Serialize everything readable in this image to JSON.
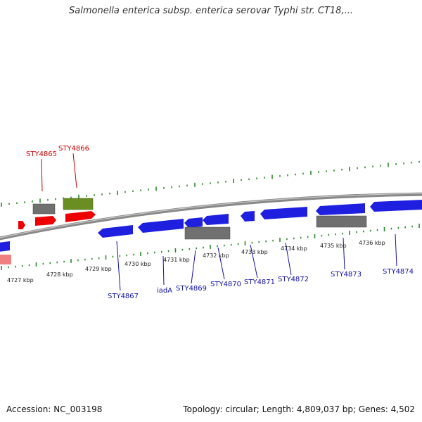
{
  "title": "Salmonella enterica subsp. enterica serovar Typhi str. CT18,...",
  "footer": {
    "accession": "Accession: NC_003198",
    "stats": "Topology: circular; Length: 4,809,037 bp; Genes: 4,502"
  },
  "colors": {
    "forward": "#ee0000",
    "forward_light": "#f08080",
    "forward_other": "#6b8e23",
    "reverse": "#1f1fe0",
    "pseudo": "#707070",
    "backbone": "#888888",
    "tick": "#2a8a2a",
    "label_forward": "#cc0000",
    "label_reverse": "#1010aa"
  },
  "ticks": [
    "4727 kbp",
    "4728 kbp",
    "4729 kbp",
    "4730 kbp",
    "4731 kbp",
    "4732 kbp",
    "4733 kbp",
    "4734 kbp",
    "4735 kbp",
    "4736 kbp"
  ],
  "gene_labels": {
    "forward": [
      "STY4865",
      "STY4866"
    ],
    "reverse": [
      "STY4867",
      "iadA",
      "STY4869",
      "STY4870",
      "STY4871",
      "STY4872",
      "STY4873",
      "STY4874"
    ]
  }
}
